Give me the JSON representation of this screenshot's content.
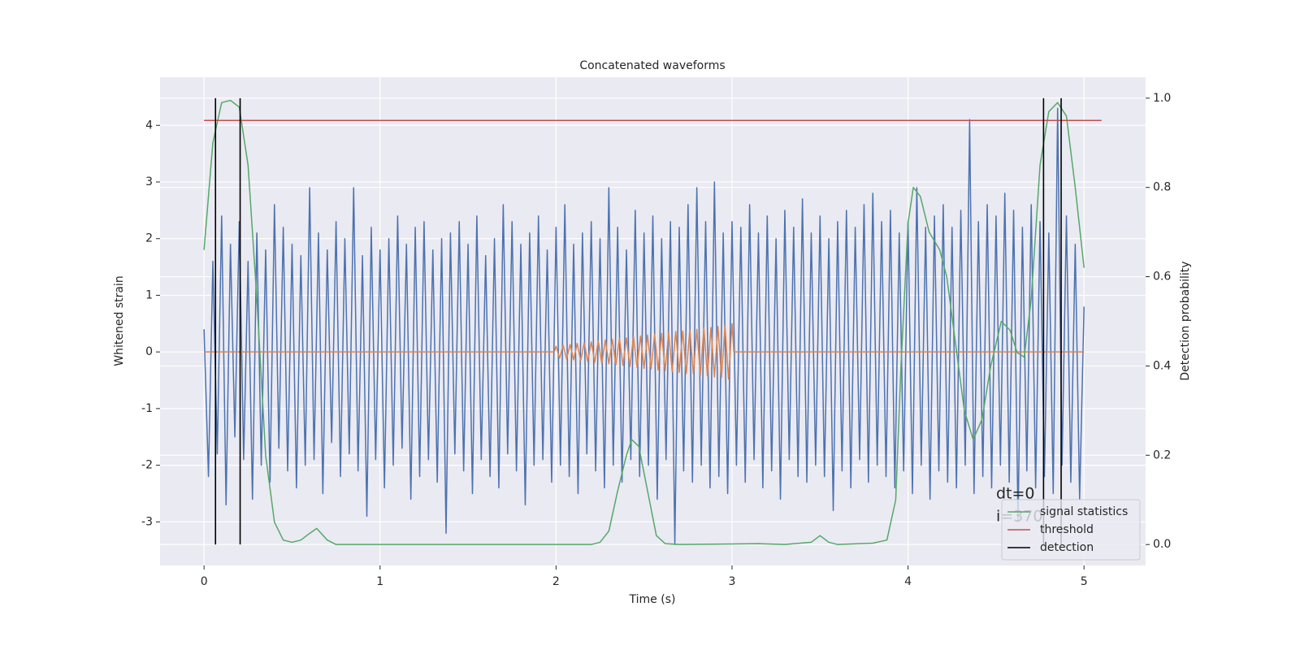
{
  "chart_data": {
    "type": "line",
    "title": "Concatenated waveforms",
    "xlabel": "Time (s)",
    "ylabel": "Whitened strain",
    "y2label": "Detection probability",
    "xlim": [
      -0.25,
      5.35
    ],
    "ylim": [
      -3.77,
      4.85
    ],
    "y2lim": [
      -0.047,
      1.047
    ],
    "xticks": [
      0,
      1,
      2,
      3,
      4,
      5
    ],
    "yticks": [
      -3,
      -2,
      -1,
      0,
      1,
      2,
      3,
      4
    ],
    "y2ticks": [
      {
        "value": 0,
        "label": "0.0"
      },
      0.2,
      0.4,
      0.6,
      0.8,
      {
        "value": 1,
        "label": "1.0"
      }
    ],
    "grid": true,
    "legend": "lower right",
    "annotations": [
      "dt=0",
      "i=370"
    ],
    "series": [
      {
        "color": "#4c72b0",
        "x": [
          0,
          0.025,
          0.05,
          0.075,
          0.1,
          0.125,
          0.15,
          0.175,
          0.2,
          0.225,
          0.25,
          0.275,
          0.3,
          0.325,
          0.35,
          0.375,
          0.4,
          0.425,
          0.45,
          0.475,
          0.5,
          0.525,
          0.55,
          0.575,
          0.6,
          0.625,
          0.65,
          0.675,
          0.7,
          0.725,
          0.75,
          0.775,
          0.8,
          0.825,
          0.85,
          0.875,
          0.9,
          0.925,
          0.95,
          0.975,
          1,
          1.025,
          1.05,
          1.075,
          1.1,
          1.125,
          1.15,
          1.175,
          1.2,
          1.225,
          1.25,
          1.275,
          1.3,
          1.325,
          1.35,
          1.375,
          1.4,
          1.425,
          1.45,
          1.475,
          1.5,
          1.525,
          1.55,
          1.575,
          1.6,
          1.625,
          1.65,
          1.675,
          1.7,
          1.725,
          1.75,
          1.775,
          1.8,
          1.825,
          1.85,
          1.875,
          1.9,
          1.925,
          1.95,
          1.975,
          2,
          2.025,
          2.05,
          2.075,
          2.1,
          2.125,
          2.15,
          2.175,
          2.2,
          2.225,
          2.25,
          2.275,
          2.3,
          2.325,
          2.35,
          2.375,
          2.4,
          2.425,
          2.45,
          2.475,
          2.5,
          2.525,
          2.55,
          2.575,
          2.6,
          2.625,
          2.65,
          2.675,
          2.7,
          2.725,
          2.75,
          2.775,
          2.8,
          2.825,
          2.85,
          2.875,
          2.9,
          2.925,
          2.95,
          2.975,
          3,
          3.025,
          3.05,
          3.075,
          3.1,
          3.125,
          3.15,
          3.175,
          3.2,
          3.225,
          3.25,
          3.275,
          3.3,
          3.325,
          3.35,
          3.375,
          3.4,
          3.425,
          3.45,
          3.475,
          3.5,
          3.525,
          3.55,
          3.575,
          3.6,
          3.625,
          3.65,
          3.675,
          3.7,
          3.725,
          3.75,
          3.775,
          3.8,
          3.825,
          3.85,
          3.875,
          3.9,
          3.925,
          3.95,
          3.975,
          4,
          4.025,
          4.05,
          4.075,
          4.1,
          4.125,
          4.15,
          4.175,
          4.2,
          4.225,
          4.25,
          4.275,
          4.3,
          4.325,
          4.35,
          4.375,
          4.4,
          4.425,
          4.45,
          4.475,
          4.5,
          4.525,
          4.55,
          4.575,
          4.6,
          4.625,
          4.65,
          4.675,
          4.7,
          4.725,
          4.75,
          4.775,
          4.8,
          4.825,
          4.85,
          4.875,
          4.9,
          4.925,
          4.95,
          4.975,
          5
        ],
        "values": [
          0.4,
          -2.2,
          1.6,
          -1.8,
          2.4,
          -2.7,
          1.9,
          -1.5,
          2.3,
          -1.9,
          1.6,
          -2.6,
          2.1,
          -2.0,
          1.8,
          -2.3,
          2.6,
          -1.7,
          2.2,
          -2.1,
          1.9,
          -2.4,
          1.7,
          -2.0,
          2.9,
          -1.9,
          2.1,
          -2.5,
          1.8,
          -1.6,
          2.3,
          -2.2,
          2.0,
          -1.8,
          2.9,
          -2.1,
          1.7,
          -2.9,
          2.2,
          -1.9,
          1.8,
          -2.4,
          2.0,
          -2.0,
          2.4,
          -1.7,
          1.9,
          -2.6,
          2.2,
          -2.2,
          2.3,
          -1.9,
          1.8,
          -2.3,
          2.0,
          -3.2,
          2.1,
          -1.8,
          2.3,
          -2.1,
          1.9,
          -2.5,
          2.4,
          -1.9,
          1.7,
          -2.2,
          2.0,
          -2.4,
          2.6,
          -1.8,
          2.3,
          -2.1,
          1.9,
          -2.7,
          2.1,
          -2.0,
          2.4,
          -1.9,
          1.8,
          -2.3,
          2.2,
          -2.0,
          2.6,
          -2.2,
          1.9,
          -2.5,
          2.1,
          -1.8,
          2.3,
          -2.1,
          2.0,
          -2.4,
          2.9,
          -2.0,
          2.2,
          -2.3,
          1.8,
          -1.9,
          2.5,
          -2.2,
          2.1,
          -2.0,
          2.4,
          -2.6,
          2.0,
          -1.9,
          2.3,
          -3.4,
          2.2,
          -2.1,
          2.6,
          -2.3,
          2.9,
          -2.0,
          2.3,
          -2.4,
          3.0,
          -2.2,
          2.1,
          -2.5,
          2.3,
          -2.0,
          2.2,
          -2.3,
          2.6,
          -1.9,
          2.1,
          -2.4,
          2.4,
          -2.1,
          2.0,
          -2.6,
          2.5,
          -1.9,
          2.2,
          -2.2,
          2.7,
          -2.3,
          2.1,
          -2.0,
          2.4,
          -2.2,
          2.0,
          -2.8,
          2.3,
          -2.1,
          2.5,
          -2.4,
          2.2,
          -1.9,
          2.6,
          -2.3,
          2.8,
          -2.0,
          2.3,
          -2.2,
          2.5,
          -2.4,
          2.1,
          -2.1,
          2.3,
          -2.5,
          2.9,
          -2.0,
          2.2,
          -2.6,
          2.4,
          -2.1,
          2.6,
          -2.3,
          2.2,
          -2.4,
          2.5,
          -2.0,
          4.1,
          -2.5,
          2.3,
          -2.2,
          2.6,
          -2.4,
          2.4,
          -2.0,
          2.8,
          -2.3,
          2.5,
          -3.0,
          2.2,
          -2.1,
          2.6,
          -2.4,
          2.3,
          -2.2,
          2.1,
          -2.5,
          4.3,
          -2.0,
          2.4,
          -2.3,
          1.9,
          -2.6,
          0.8
        ]
      },
      {
        "color": "#dd8452",
        "x": [
          0,
          1.99,
          2,
          2.02,
          2.04,
          2.06,
          2.08,
          2.1,
          2.12,
          2.14,
          2.16,
          2.18,
          2.2,
          2.22,
          2.24,
          2.26,
          2.28,
          2.3,
          2.32,
          2.34,
          2.36,
          2.38,
          2.4,
          2.42,
          2.44,
          2.46,
          2.48,
          2.5,
          2.52,
          2.54,
          2.56,
          2.58,
          2.6,
          2.62,
          2.64,
          2.66,
          2.68,
          2.7,
          2.72,
          2.74,
          2.76,
          2.78,
          2.8,
          2.82,
          2.84,
          2.86,
          2.88,
          2.9,
          2.92,
          2.94,
          2.96,
          2.98,
          3,
          3.01,
          5
        ],
        "values": [
          0,
          0,
          0.1,
          -0.11,
          0.12,
          -0.12,
          0.13,
          -0.14,
          0.15,
          -0.15,
          0.16,
          -0.17,
          0.18,
          -0.18,
          0.19,
          -0.2,
          0.21,
          -0.21,
          0.22,
          -0.23,
          0.24,
          -0.24,
          0.25,
          -0.26,
          0.27,
          -0.27,
          0.28,
          -0.29,
          0.3,
          -0.3,
          0.31,
          -0.32,
          0.33,
          -0.33,
          0.34,
          -0.35,
          0.36,
          -0.36,
          0.37,
          -0.38,
          0.39,
          -0.39,
          0.4,
          -0.41,
          0.42,
          -0.42,
          0.43,
          -0.44,
          0.45,
          -0.45,
          0.46,
          -0.48,
          0.5,
          0,
          0
        ]
      },
      {
        "name": "signal statistics",
        "color": "#55a868",
        "axis": "y2",
        "x": [
          0,
          0.05,
          0.1,
          0.15,
          0.2,
          0.25,
          0.3,
          0.35,
          0.4,
          0.45,
          0.5,
          0.55,
          0.6,
          0.64,
          0.7,
          0.75,
          1,
          2.2,
          2.25,
          2.3,
          2.35,
          2.4,
          2.43,
          2.47,
          2.52,
          2.57,
          2.62,
          2.7,
          3.15,
          3.3,
          3.45,
          3.5,
          3.55,
          3.6,
          3.8,
          3.88,
          3.93,
          3.96,
          4,
          4.03,
          4.07,
          4.12,
          4.18,
          4.22,
          4.27,
          4.32,
          4.37,
          4.42,
          4.47,
          4.53,
          4.58,
          4.62,
          4.66,
          4.7,
          4.75,
          4.8,
          4.85,
          4.9,
          4.95,
          5
        ],
        "values": [
          0.66,
          0.9,
          0.99,
          0.995,
          0.98,
          0.85,
          0.55,
          0.2,
          0.05,
          0.01,
          0.005,
          0.01,
          0.025,
          0.036,
          0.01,
          0,
          0,
          0,
          0.005,
          0.03,
          0.12,
          0.2,
          0.235,
          0.22,
          0.12,
          0.02,
          0.002,
          0,
          0.002,
          0,
          0.005,
          0.02,
          0.005,
          0,
          0.003,
          0.01,
          0.1,
          0.4,
          0.72,
          0.8,
          0.78,
          0.7,
          0.66,
          0.6,
          0.45,
          0.3,
          0.235,
          0.28,
          0.4,
          0.5,
          0.48,
          0.43,
          0.42,
          0.55,
          0.85,
          0.97,
          0.99,
          0.96,
          0.8,
          0.62
        ]
      },
      {
        "name": "threshold",
        "color": "#c44e52",
        "axis": "y2",
        "x": [
          0,
          5.1
        ],
        "values": [
          0.95,
          0.95
        ]
      }
    ],
    "detections": {
      "name": "detection",
      "color": "#000000",
      "axis": "y2",
      "x": [
        0.065,
        0.205,
        4.77,
        4.87
      ],
      "ymin": 0,
      "ymax": 1
    }
  }
}
